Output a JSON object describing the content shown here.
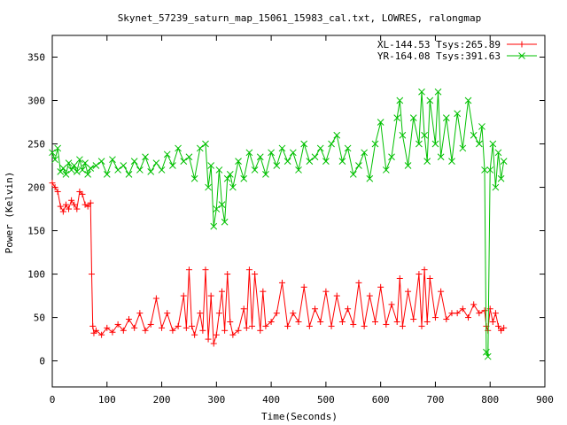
{
  "chart_data": {
    "type": "scatter",
    "title": "Skynet_57239_saturn_map_15061_15983_cal.txt, LOWRES, ralongmap",
    "xlabel": "Time(Seconds)",
    "ylabel": "Power (Kelvin)",
    "xlim": [
      0,
      900
    ],
    "ylim": [
      -30,
      375
    ],
    "xticks": [
      0,
      100,
      200,
      300,
      400,
      500,
      600,
      700,
      800,
      900
    ],
    "yticks": [
      0,
      50,
      100,
      150,
      200,
      250,
      300,
      350
    ],
    "legend_position": "top-right",
    "series": [
      {
        "name": "XL-144.53 Tsys:265.89",
        "color": "#ff0000",
        "marker": "plus",
        "line": true,
        "x": [
          0,
          5,
          10,
          15,
          20,
          25,
          30,
          35,
          40,
          45,
          50,
          55,
          60,
          65,
          70,
          72,
          74,
          76,
          80,
          90,
          100,
          110,
          120,
          130,
          140,
          150,
          160,
          170,
          180,
          190,
          200,
          210,
          220,
          230,
          240,
          245,
          250,
          255,
          260,
          270,
          275,
          280,
          285,
          290,
          295,
          300,
          305,
          310,
          315,
          320,
          325,
          330,
          340,
          350,
          355,
          360,
          365,
          370,
          380,
          385,
          390,
          400,
          410,
          420,
          430,
          440,
          450,
          460,
          470,
          480,
          490,
          500,
          510,
          520,
          530,
          540,
          550,
          560,
          570,
          580,
          590,
          600,
          610,
          620,
          630,
          635,
          640,
          650,
          660,
          670,
          675,
          680,
          685,
          690,
          700,
          710,
          720,
          730,
          740,
          750,
          760,
          770,
          780,
          790,
          793,
          796,
          800,
          805,
          810,
          815,
          820,
          825
        ],
        "values": [
          205,
          200,
          195,
          178,
          172,
          180,
          175,
          185,
          180,
          175,
          195,
          192,
          180,
          178,
          182,
          100,
          40,
          32,
          35,
          30,
          38,
          33,
          42,
          35,
          48,
          38,
          55,
          35,
          42,
          72,
          38,
          55,
          35,
          40,
          75,
          38,
          105,
          40,
          30,
          55,
          35,
          105,
          25,
          75,
          20,
          30,
          55,
          80,
          35,
          100,
          45,
          30,
          35,
          60,
          38,
          105,
          40,
          100,
          35,
          80,
          40,
          45,
          55,
          90,
          40,
          55,
          45,
          85,
          40,
          60,
          45,
          80,
          40,
          75,
          45,
          60,
          42,
          90,
          40,
          75,
          45,
          85,
          42,
          65,
          45,
          95,
          40,
          80,
          48,
          100,
          40,
          105,
          45,
          95,
          50,
          80,
          48,
          55,
          55,
          60,
          50,
          65,
          55,
          58,
          40,
          35,
          60,
          45,
          55,
          40,
          35,
          38
        ]
      },
      {
        "name": "YR-164.08 Tsys:391.63",
        "color": "#00c000",
        "marker": "cross",
        "line": true,
        "x": [
          0,
          5,
          10,
          15,
          20,
          25,
          30,
          35,
          40,
          45,
          50,
          55,
          60,
          65,
          70,
          80,
          90,
          100,
          110,
          120,
          130,
          140,
          150,
          160,
          170,
          180,
          190,
          200,
          210,
          220,
          230,
          240,
          250,
          260,
          270,
          280,
          285,
          290,
          295,
          300,
          305,
          310,
          315,
          320,
          325,
          330,
          340,
          350,
          360,
          370,
          380,
          390,
          400,
          410,
          420,
          430,
          440,
          450,
          460,
          470,
          480,
          490,
          500,
          510,
          520,
          530,
          540,
          550,
          560,
          570,
          580,
          590,
          600,
          610,
          620,
          630,
          635,
          640,
          650,
          660,
          670,
          675,
          680,
          685,
          690,
          700,
          705,
          710,
          720,
          730,
          740,
          750,
          760,
          770,
          780,
          785,
          790,
          793,
          796,
          800,
          805,
          810,
          815,
          820,
          825
        ],
        "values": [
          240,
          232,
          245,
          218,
          222,
          215,
          228,
          220,
          225,
          218,
          232,
          220,
          228,
          215,
          222,
          225,
          230,
          215,
          232,
          220,
          225,
          215,
          230,
          220,
          235,
          218,
          228,
          220,
          238,
          225,
          245,
          230,
          235,
          210,
          245,
          250,
          200,
          225,
          155,
          175,
          220,
          180,
          160,
          210,
          215,
          200,
          230,
          210,
          240,
          220,
          235,
          215,
          240,
          225,
          245,
          230,
          240,
          220,
          250,
          230,
          235,
          245,
          230,
          250,
          260,
          230,
          245,
          215,
          225,
          240,
          210,
          250,
          275,
          220,
          235,
          280,
          300,
          260,
          225,
          280,
          250,
          310,
          260,
          230,
          300,
          250,
          310,
          235,
          280,
          230,
          285,
          245,
          300,
          260,
          250,
          270,
          220,
          10,
          5,
          220,
          250,
          200,
          240,
          210,
          230
        ]
      }
    ]
  }
}
